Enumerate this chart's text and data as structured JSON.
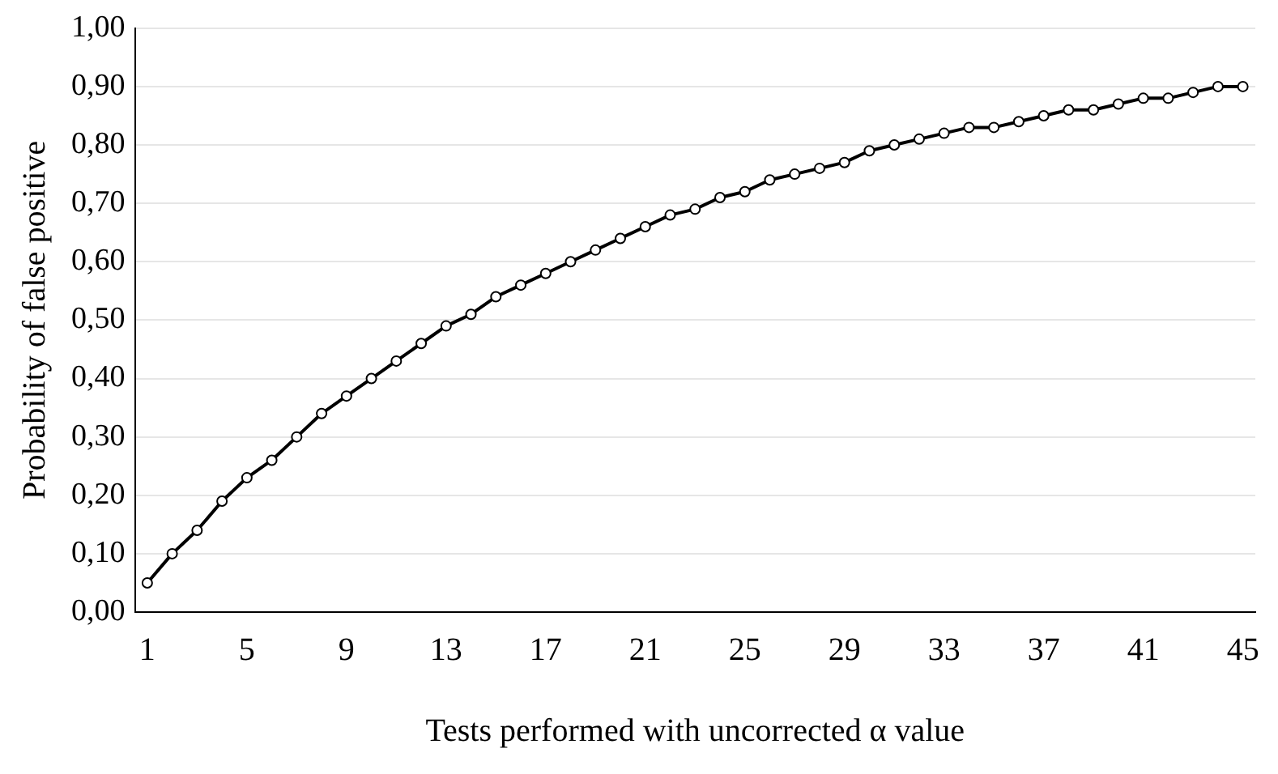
{
  "chart_data": {
    "type": "line",
    "xlabel": "Tests performed with uncorrected α value",
    "ylabel": "Probability of false positive",
    "categories": [
      "1",
      null,
      null,
      null,
      "5",
      null,
      null,
      null,
      "9",
      null,
      null,
      null,
      "13",
      null,
      null,
      null,
      "17",
      null,
      null,
      null,
      "21",
      null,
      null,
      null,
      "25",
      null,
      null,
      null,
      "29",
      null,
      null,
      null,
      "33",
      null,
      null,
      null,
      "37",
      null,
      null,
      null,
      "41",
      null,
      null,
      null,
      "45"
    ],
    "values": [
      0.05,
      0.1,
      0.14,
      0.19,
      0.23,
      0.26,
      0.3,
      0.34,
      0.37,
      0.4,
      0.43,
      0.46,
      0.49,
      0.51,
      0.54,
      0.56,
      0.58,
      0.6,
      0.62,
      0.64,
      0.66,
      0.68,
      0.69,
      0.71,
      0.72,
      0.74,
      0.75,
      0.76,
      0.77,
      0.79,
      0.8,
      0.81,
      0.82,
      0.83,
      0.83,
      0.84,
      0.85,
      0.86,
      0.86,
      0.87,
      0.88,
      0.88,
      0.89,
      0.9,
      0.9
    ],
    "color": "#000000",
    "marker": "circle",
    "line_style": "solid",
    "ylim": [
      0,
      1
    ],
    "yticks": [
      {
        "value": 0,
        "label": "0,00"
      },
      {
        "value": 0.1,
        "label": "0,10"
      },
      {
        "value": 0.2,
        "label": "0,20"
      },
      {
        "value": 0.3,
        "label": "0,30"
      },
      {
        "value": 0.4,
        "label": "0,40"
      },
      {
        "value": 0.5,
        "label": "0,50"
      },
      {
        "value": 0.6,
        "label": "0,60"
      },
      {
        "value": 0.7,
        "label": "0,70"
      },
      {
        "value": 0.8,
        "label": "0,80"
      },
      {
        "value": 0.9,
        "label": "0,90"
      },
      {
        "value": 1,
        "label": "1,00"
      }
    ],
    "grid": "y",
    "legend": false
  }
}
